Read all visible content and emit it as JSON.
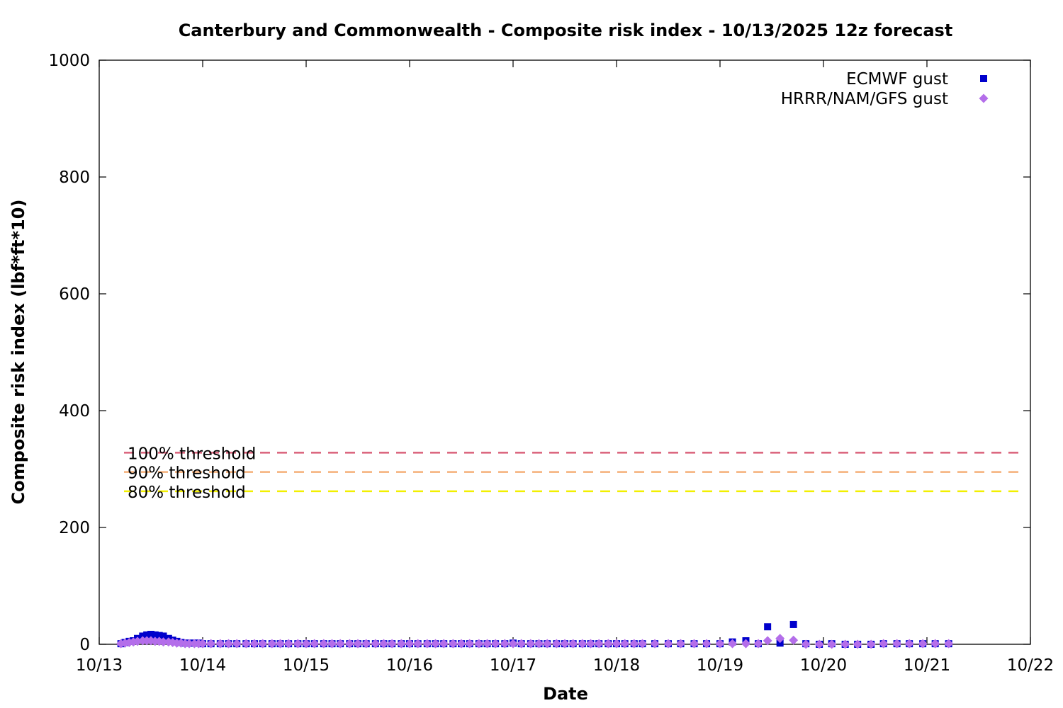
{
  "chart_data": {
    "type": "scatter",
    "title": "Canterbury and Commonwealth - Composite risk index - 10/13/2025 12z forecast",
    "xlabel": "Date",
    "ylabel": "Composite risk index (lbf*ft*10)",
    "ylim": [
      0,
      1000
    ],
    "y_ticks": [
      0,
      200,
      400,
      600,
      800,
      1000
    ],
    "xlim": [
      0,
      9
    ],
    "x_ticks": [
      {
        "x": 0,
        "label": "10/13"
      },
      {
        "x": 1,
        "label": "10/14"
      },
      {
        "x": 2,
        "label": "10/15"
      },
      {
        "x": 3,
        "label": "10/16"
      },
      {
        "x": 4,
        "label": "10/17"
      },
      {
        "x": 5,
        "label": "10/18"
      },
      {
        "x": 6,
        "label": "10/19"
      },
      {
        "x": 7,
        "label": "10/20"
      },
      {
        "x": 8,
        "label": "10/21"
      },
      {
        "x": 9,
        "label": "10/22"
      }
    ],
    "legend_position": "top-right",
    "grid": false,
    "thresholds": [
      {
        "label": "100% threshold",
        "value": 328,
        "color": "#d9607a"
      },
      {
        "label": "90% threshold",
        "value": 295,
        "color": "#f5b07a"
      },
      {
        "label": "80% threshold",
        "value": 262,
        "color": "#f2f000"
      }
    ],
    "series": [
      {
        "name": "ECMWF gust",
        "color": "#0000cc",
        "marker": "square",
        "points": [
          [
            0.21,
            1
          ],
          [
            0.25,
            3
          ],
          [
            0.29,
            5
          ],
          [
            0.33,
            6
          ],
          [
            0.37,
            10
          ],
          [
            0.42,
            14
          ],
          [
            0.46,
            16
          ],
          [
            0.5,
            17
          ],
          [
            0.54,
            16
          ],
          [
            0.58,
            15
          ],
          [
            0.62,
            14
          ],
          [
            0.67,
            10
          ],
          [
            0.71,
            7
          ],
          [
            0.75,
            5
          ],
          [
            0.79,
            3
          ],
          [
            0.83,
            2
          ],
          [
            0.87,
            2
          ],
          [
            0.92,
            2
          ],
          [
            0.96,
            2
          ],
          [
            1.0,
            1
          ],
          [
            1.08,
            1
          ],
          [
            1.17,
            1
          ],
          [
            1.25,
            1
          ],
          [
            1.33,
            1
          ],
          [
            1.42,
            1
          ],
          [
            1.5,
            1
          ],
          [
            1.58,
            1
          ],
          [
            1.67,
            1
          ],
          [
            1.75,
            1
          ],
          [
            1.83,
            1
          ],
          [
            1.92,
            1
          ],
          [
            2.0,
            1
          ],
          [
            2.08,
            1
          ],
          [
            2.17,
            1
          ],
          [
            2.25,
            1
          ],
          [
            2.33,
            1
          ],
          [
            2.42,
            1
          ],
          [
            2.5,
            1
          ],
          [
            2.58,
            1
          ],
          [
            2.67,
            1
          ],
          [
            2.75,
            1
          ],
          [
            2.83,
            1
          ],
          [
            2.92,
            1
          ],
          [
            3.0,
            1
          ],
          [
            3.08,
            1
          ],
          [
            3.17,
            1
          ],
          [
            3.25,
            1
          ],
          [
            3.33,
            1
          ],
          [
            3.42,
            1
          ],
          [
            3.5,
            1
          ],
          [
            3.58,
            1
          ],
          [
            3.67,
            1
          ],
          [
            3.75,
            1
          ],
          [
            3.83,
            1
          ],
          [
            3.92,
            1
          ],
          [
            4.0,
            2
          ],
          [
            4.08,
            1
          ],
          [
            4.17,
            1
          ],
          [
            4.25,
            1
          ],
          [
            4.33,
            1
          ],
          [
            4.42,
            1
          ],
          [
            4.5,
            1
          ],
          [
            4.58,
            1
          ],
          [
            4.67,
            1
          ],
          [
            4.75,
            1
          ],
          [
            4.83,
            1
          ],
          [
            4.92,
            1
          ],
          [
            5.0,
            1
          ],
          [
            5.08,
            1
          ],
          [
            5.17,
            1
          ],
          [
            5.25,
            1
          ],
          [
            5.37,
            1
          ],
          [
            5.5,
            1
          ],
          [
            5.62,
            1
          ],
          [
            5.75,
            1
          ],
          [
            5.87,
            1
          ],
          [
            6.0,
            1
          ],
          [
            6.12,
            4
          ],
          [
            6.25,
            6
          ],
          [
            6.37,
            1
          ],
          [
            6.46,
            30
          ],
          [
            6.58,
            2
          ],
          [
            6.71,
            34
          ],
          [
            6.83,
            1
          ],
          [
            6.96,
            0
          ],
          [
            7.08,
            1
          ],
          [
            7.21,
            0
          ],
          [
            7.33,
            0
          ],
          [
            7.46,
            0
          ],
          [
            7.58,
            1
          ],
          [
            7.71,
            1
          ],
          [
            7.83,
            1
          ],
          [
            7.96,
            1
          ],
          [
            8.08,
            1
          ],
          [
            8.21,
            1
          ]
        ]
      },
      {
        "name": "HRRR/NAM/GFS gust",
        "color": "#b46eea",
        "marker": "diamond",
        "points": [
          [
            0.21,
            1
          ],
          [
            0.25,
            2
          ],
          [
            0.29,
            3
          ],
          [
            0.33,
            4
          ],
          [
            0.37,
            5
          ],
          [
            0.42,
            6
          ],
          [
            0.46,
            6
          ],
          [
            0.5,
            6
          ],
          [
            0.54,
            5
          ],
          [
            0.58,
            5
          ],
          [
            0.62,
            4
          ],
          [
            0.67,
            4
          ],
          [
            0.71,
            3
          ],
          [
            0.75,
            2
          ],
          [
            0.79,
            2
          ],
          [
            0.83,
            1
          ],
          [
            0.87,
            1
          ],
          [
            0.92,
            1
          ],
          [
            0.96,
            1
          ],
          [
            1.0,
            1
          ],
          [
            1.08,
            1
          ],
          [
            1.17,
            1
          ],
          [
            1.25,
            1
          ],
          [
            1.33,
            1
          ],
          [
            1.42,
            1
          ],
          [
            1.5,
            1
          ],
          [
            1.58,
            1
          ],
          [
            1.67,
            1
          ],
          [
            1.75,
            1
          ],
          [
            1.83,
            1
          ],
          [
            1.92,
            1
          ],
          [
            2.0,
            1
          ],
          [
            2.08,
            1
          ],
          [
            2.17,
            1
          ],
          [
            2.25,
            1
          ],
          [
            2.33,
            1
          ],
          [
            2.42,
            1
          ],
          [
            2.5,
            1
          ],
          [
            2.58,
            1
          ],
          [
            2.67,
            1
          ],
          [
            2.75,
            1
          ],
          [
            2.83,
            1
          ],
          [
            2.92,
            1
          ],
          [
            3.0,
            1
          ],
          [
            3.08,
            1
          ],
          [
            3.17,
            1
          ],
          [
            3.25,
            1
          ],
          [
            3.33,
            1
          ],
          [
            3.42,
            1
          ],
          [
            3.5,
            1
          ],
          [
            3.58,
            1
          ],
          [
            3.67,
            1
          ],
          [
            3.75,
            1
          ],
          [
            3.83,
            1
          ],
          [
            3.92,
            1
          ],
          [
            4.0,
            1
          ],
          [
            4.08,
            1
          ],
          [
            4.17,
            1
          ],
          [
            4.25,
            1
          ],
          [
            4.33,
            1
          ],
          [
            4.42,
            1
          ],
          [
            4.5,
            1
          ],
          [
            4.58,
            1
          ],
          [
            4.67,
            1
          ],
          [
            4.75,
            1
          ],
          [
            4.83,
            1
          ],
          [
            4.92,
            1
          ],
          [
            5.0,
            1
          ],
          [
            5.08,
            1
          ],
          [
            5.17,
            1
          ],
          [
            5.25,
            1
          ],
          [
            5.37,
            1
          ],
          [
            5.5,
            1
          ],
          [
            5.62,
            1
          ],
          [
            5.75,
            1
          ],
          [
            5.87,
            1
          ],
          [
            6.0,
            1
          ],
          [
            6.12,
            1
          ],
          [
            6.25,
            1
          ],
          [
            6.37,
            1
          ],
          [
            6.46,
            6
          ],
          [
            6.58,
            10
          ],
          [
            6.71,
            7
          ],
          [
            6.83,
            0
          ],
          [
            6.96,
            0
          ],
          [
            7.08,
            0
          ],
          [
            7.21,
            0
          ],
          [
            7.33,
            0
          ],
          [
            7.46,
            0
          ],
          [
            7.58,
            1
          ],
          [
            7.71,
            1
          ],
          [
            7.83,
            1
          ],
          [
            7.96,
            1
          ],
          [
            8.08,
            1
          ],
          [
            8.21,
            1
          ]
        ]
      }
    ]
  }
}
